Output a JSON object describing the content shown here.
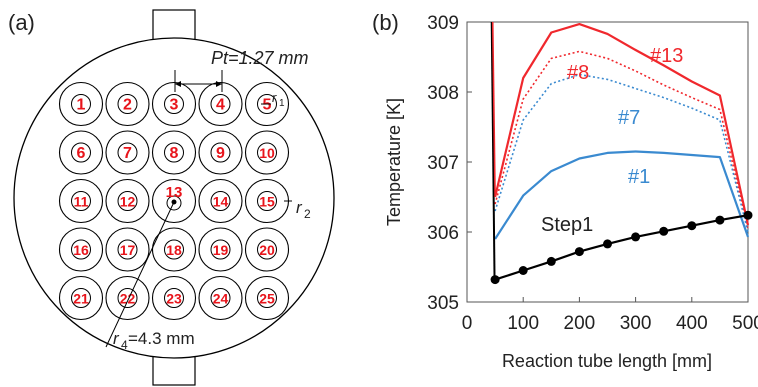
{
  "panel_a": {
    "label": "(a)",
    "pitch_label": "Pt=1.27 mm",
    "r1_label": "r",
    "r1_sub": "1",
    "r2_label": "r",
    "r2_sub": "2",
    "r4_label": "r",
    "r4_sub": "4",
    "r4_value": "=4.3 mm",
    "tube_numbers": [
      "1",
      "2",
      "3",
      "4",
      "5",
      "6",
      "7",
      "8",
      "9",
      "10",
      "11",
      "12",
      "13",
      "14",
      "15",
      "16",
      "17",
      "18",
      "19",
      "20",
      "21",
      "22",
      "23",
      "24",
      "25"
    ],
    "tube_number_color": "#e8141b"
  },
  "panel_b": {
    "label": "(b)"
  },
  "chart_data": {
    "type": "line",
    "xlabel": "Reaction tube length [mm]",
    "ylabel": "Temperature [K]",
    "xlim": [
      0,
      500
    ],
    "ylim": [
      305,
      309
    ],
    "xticks": [
      "0",
      "100",
      "200",
      "300",
      "400",
      "500"
    ],
    "yticks": [
      "305",
      "306",
      "307",
      "308",
      "309"
    ],
    "grid": false,
    "series": [
      {
        "name": "#13",
        "color": "#f0282d",
        "style": "solid",
        "x": [
          50,
          100,
          150,
          200,
          250,
          300,
          350,
          400,
          450,
          500
        ],
        "y": [
          306.5,
          308.2,
          308.85,
          308.97,
          308.83,
          308.6,
          308.38,
          308.15,
          307.95,
          306.1
        ]
      },
      {
        "name": "#8",
        "color": "#f0282d",
        "style": "dotted",
        "x": [
          50,
          100,
          150,
          200,
          250,
          300,
          350,
          400,
          450,
          500
        ],
        "y": [
          306.4,
          307.9,
          308.48,
          308.58,
          308.48,
          308.3,
          308.1,
          307.92,
          307.75,
          306.05
        ]
      },
      {
        "name": "#7",
        "color": "#3a8ad0",
        "style": "dotted",
        "x": [
          50,
          100,
          150,
          200,
          250,
          300,
          350,
          400,
          450,
          500
        ],
        "y": [
          306.3,
          307.6,
          308.12,
          308.25,
          308.18,
          308.05,
          307.92,
          307.77,
          307.6,
          306.0
        ]
      },
      {
        "name": "#1",
        "color": "#3a8ad0",
        "style": "solid",
        "x": [
          50,
          100,
          150,
          200,
          250,
          300,
          350,
          400,
          450,
          500
        ],
        "y": [
          305.9,
          306.52,
          306.87,
          307.05,
          307.13,
          307.15,
          307.13,
          307.1,
          307.07,
          305.93
        ]
      },
      {
        "name": "Step1",
        "color": "#000000",
        "style": "solid-markers",
        "x": [
          50,
          100,
          150,
          200,
          250,
          300,
          350,
          400,
          450,
          500
        ],
        "y": [
          305.32,
          305.45,
          305.58,
          305.72,
          305.83,
          305.93,
          306.01,
          306.09,
          306.17,
          306.24
        ]
      }
    ],
    "inlet_spike": {
      "color": "#000000",
      "x": [
        44,
        49
      ],
      "y": [
        309,
        305.32
      ]
    }
  }
}
